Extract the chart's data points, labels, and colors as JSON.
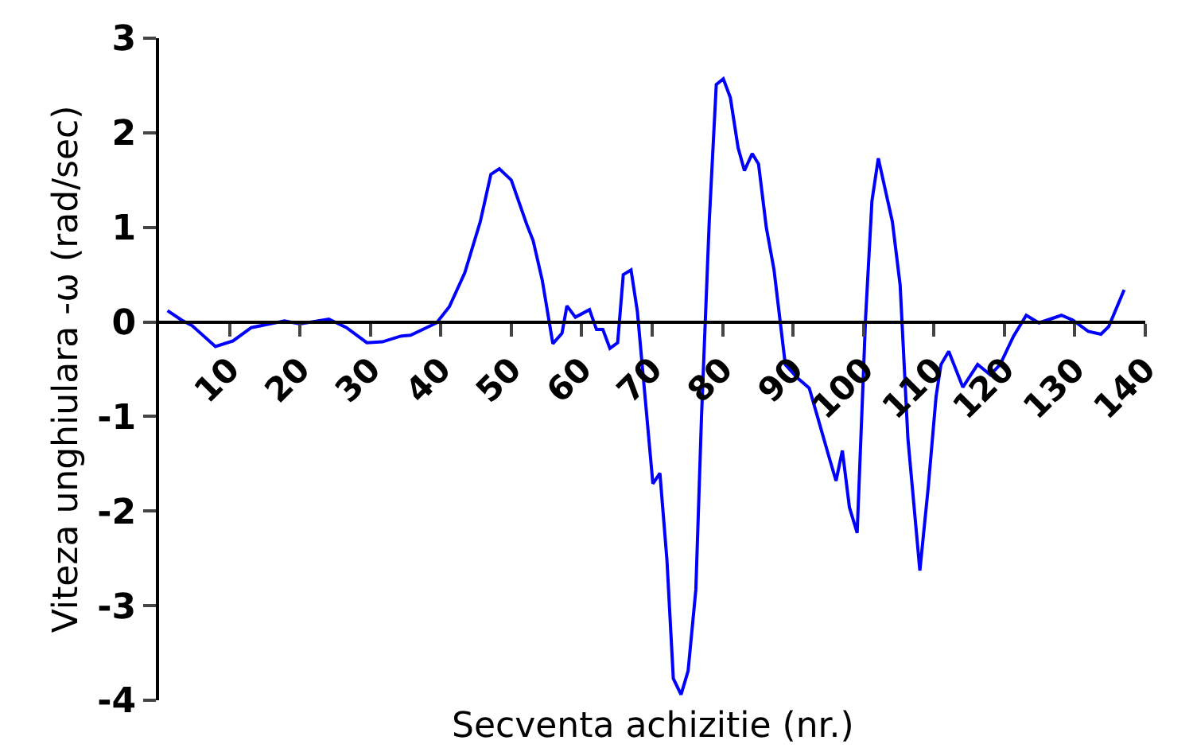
{
  "chart_data": {
    "type": "line",
    "xlabel": "Secventa achizitie (nr.)",
    "ylabel": "Viteza unghiulara -ω (rad/sec)",
    "xlim": [
      0,
      140
    ],
    "xticks": [
      10,
      20,
      30,
      40,
      50,
      60,
      70,
      80,
      90,
      100,
      110,
      120,
      130,
      140
    ],
    "ylim": [
      -4,
      3
    ],
    "yticks": [
      -4,
      -3,
      -2,
      -1,
      0,
      1,
      2,
      3
    ],
    "marker": "none",
    "line_style": "solid",
    "series": [
      {
        "color": "#0000ff",
        "x": [
          1.2,
          3.2,
          4.7,
          8.0,
          10.5,
          13.1,
          17.8,
          20.0,
          24.1,
          26.6,
          29.5,
          31.7,
          34.3,
          35.7,
          39.4,
          41.2,
          43.4,
          45.6,
          47.1,
          48.3,
          50.0,
          52.2,
          53.1,
          54.4,
          55.9,
          57.2,
          57.9,
          59.1,
          61.1,
          62.1,
          63.0,
          64.0,
          65.1,
          65.9,
          67.0,
          67.9,
          70.1,
          71.1,
          72.1,
          73.0,
          74.1,
          75.1,
          76.2,
          77.0,
          78.1,
          79.1,
          80.1,
          81.1,
          82.2,
          83.1,
          84.2,
          85.1,
          86.2,
          87.3,
          88.9,
          90.6,
          92.3,
          93.5,
          95.0,
          96.1,
          97.0,
          98.0,
          99.1,
          100.3,
          101.2,
          102.1,
          104.1,
          105.2,
          106.3,
          108.0,
          109.2,
          110.3,
          111.0,
          112.1,
          114.1,
          116.2,
          118.0,
          119.4,
          121.3,
          123.1,
          124.9,
          128.1,
          129.7,
          131.9,
          133.7,
          134.8,
          137.0
        ],
        "values": [
          0.12,
          0.02,
          -0.04,
          -0.26,
          -0.2,
          -0.06,
          0.01,
          -0.02,
          0.03,
          -0.06,
          -0.22,
          -0.21,
          -0.15,
          -0.14,
          -0.01,
          0.16,
          0.52,
          1.06,
          1.56,
          1.62,
          1.5,
          1.03,
          0.86,
          0.44,
          -0.23,
          -0.12,
          0.17,
          0.05,
          0.13,
          -0.08,
          -0.08,
          -0.28,
          -0.22,
          0.5,
          0.55,
          0.11,
          -1.71,
          -1.6,
          -2.52,
          -3.77,
          -3.94,
          -3.69,
          -2.83,
          -1.01,
          1.06,
          2.51,
          2.57,
          2.37,
          1.84,
          1.6,
          1.78,
          1.67,
          1.0,
          0.55,
          -0.45,
          -0.59,
          -0.7,
          -1.01,
          -1.4,
          -1.68,
          -1.36,
          -1.96,
          -2.23,
          0.05,
          1.28,
          1.73,
          1.06,
          0.39,
          -1.23,
          -2.63,
          -1.74,
          -0.79,
          -0.45,
          -0.31,
          -0.69,
          -0.45,
          -0.56,
          -0.45,
          -0.15,
          0.07,
          -0.01,
          0.07,
          0.02,
          -0.1,
          -0.13,
          -0.05,
          0.34
        ]
      }
    ]
  }
}
